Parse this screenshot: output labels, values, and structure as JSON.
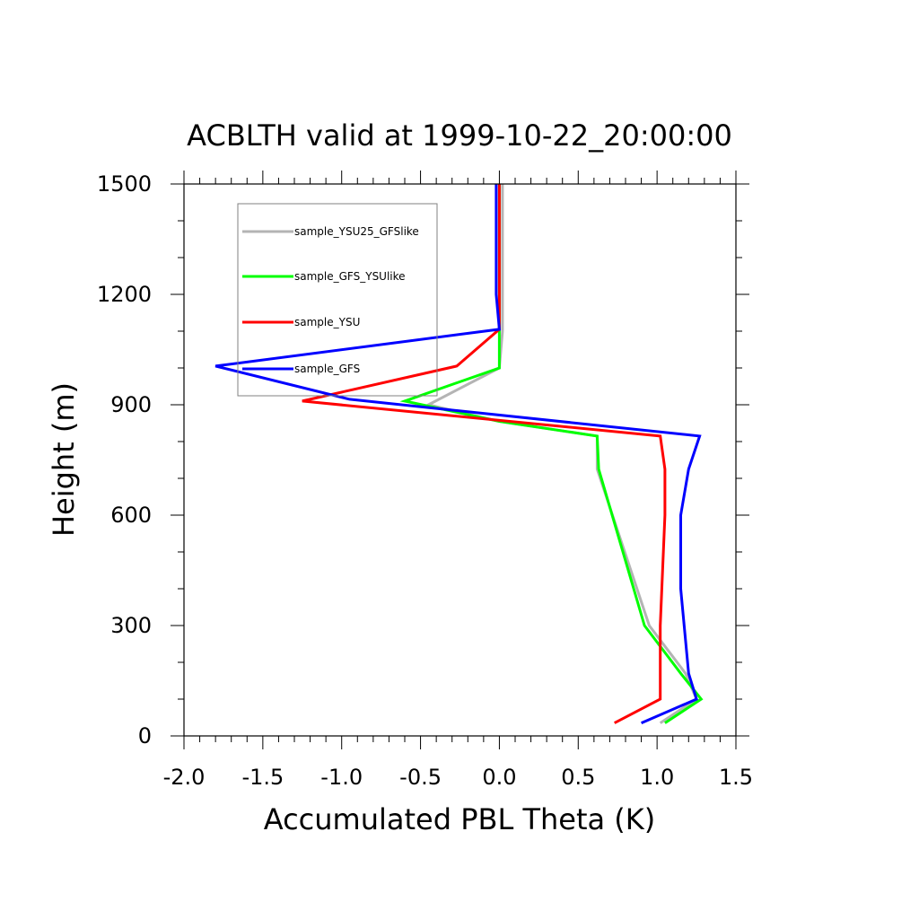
{
  "chart_data": {
    "type": "line",
    "title": "ACBLTH valid at 1999-10-22_20:00:00",
    "xlabel": "Accumulated PBL Theta (K)",
    "ylabel": "Height (m)",
    "xlim": [
      -2.0,
      1.5
    ],
    "ylim": [
      0,
      1500
    ],
    "x_ticks": [
      -2.0,
      -1.5,
      -1.0,
      -0.5,
      0.0,
      0.5,
      1.0,
      1.5
    ],
    "x_tick_labels": [
      "-2.0",
      "-1.5",
      "-1.0",
      "-0.5",
      "0.0",
      "0.5",
      "1.0",
      "1.5"
    ],
    "y_ticks": [
      0,
      300,
      600,
      900,
      1200,
      1500
    ],
    "y_tick_labels": [
      "0",
      "300",
      "600",
      "900",
      "1200",
      "1500"
    ],
    "grid": false,
    "legend_position": "top-left",
    "series": [
      {
        "name": "sample_YSU25_GFSlike",
        "color": "#b4b4b4",
        "points": [
          [
            1.02,
            35
          ],
          [
            1.25,
            100
          ],
          [
            1.18,
            170
          ],
          [
            0.95,
            300
          ],
          [
            0.62,
            725
          ],
          [
            0.62,
            815
          ],
          [
            0.0,
            855
          ],
          [
            -0.45,
            900
          ],
          [
            0.0,
            1000
          ],
          [
            0.02,
            1100
          ],
          [
            0.02,
            1200
          ],
          [
            0.02,
            1500
          ]
        ]
      },
      {
        "name": "sample_GFS_YSUlike",
        "color": "#00ff00",
        "points": [
          [
            1.05,
            35
          ],
          [
            1.28,
            100
          ],
          [
            1.15,
            170
          ],
          [
            0.92,
            300
          ],
          [
            0.63,
            725
          ],
          [
            0.62,
            815
          ],
          [
            0.0,
            855
          ],
          [
            -0.6,
            910
          ],
          [
            0.0,
            1000
          ],
          [
            0.0,
            1100
          ],
          [
            0.0,
            1200
          ],
          [
            0.0,
            1500
          ]
        ]
      },
      {
        "name": "sample_YSU",
        "color": "#ff0000",
        "points": [
          [
            0.73,
            35
          ],
          [
            1.02,
            100
          ],
          [
            1.02,
            170
          ],
          [
            1.02,
            300
          ],
          [
            1.05,
            600
          ],
          [
            1.05,
            725
          ],
          [
            1.02,
            815
          ],
          [
            -1.25,
            910
          ],
          [
            -0.27,
            1005
          ],
          [
            0.0,
            1105
          ],
          [
            0.0,
            1200
          ],
          [
            0.0,
            1500
          ]
        ]
      },
      {
        "name": "sample_GFS",
        "color": "#0000ff",
        "points": [
          [
            0.9,
            35
          ],
          [
            1.25,
            100
          ],
          [
            1.2,
            170
          ],
          [
            1.15,
            400
          ],
          [
            1.15,
            600
          ],
          [
            1.2,
            725
          ],
          [
            1.27,
            815
          ],
          [
            -0.95,
            915
          ],
          [
            -1.8,
            1005
          ],
          [
            0.0,
            1105
          ],
          [
            -0.02,
            1200
          ],
          [
            -0.02,
            1500
          ]
        ]
      }
    ]
  }
}
